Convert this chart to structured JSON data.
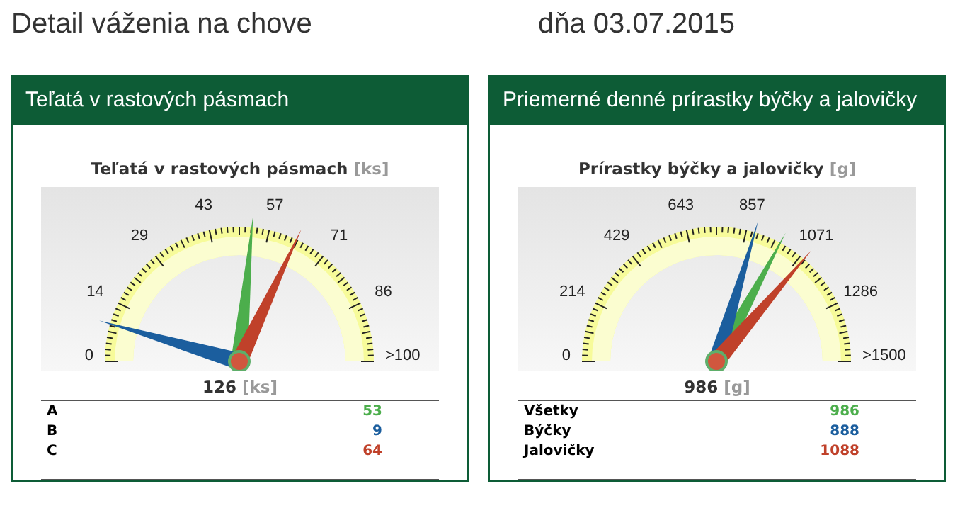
{
  "chart_data": [
    {
      "type": "other",
      "annotations": [
        "Detail váženia na chove",
        "dňa 03.07.2015"
      ]
    },
    {
      "type": "other",
      "title": "Teľatá v rastových pásmach",
      "subtitle": "Teľatá v rastových pásmach [ks]",
      "annotations": [
        "0",
        "14",
        "29",
        "43",
        "57",
        "71",
        "86",
        ">100",
        "126 [ks]"
      ],
      "categories": [
        "A",
        "B",
        "C"
      ],
      "values": [
        53,
        9,
        64
      ],
      "colors": [
        "#4cae4c",
        "#1b5e9e",
        "#c0412a"
      ],
      "value_labels": [
        "53",
        "9",
        "64"
      ]
    },
    {
      "type": "other",
      "title": "Priemerné denné prírastky býčky a jalovičky",
      "subtitle": "Prírastky býčky a jalovičky [g]",
      "annotations": [
        "0",
        "214",
        "429",
        "643",
        "857",
        "1071",
        "1286",
        ">1500",
        "986 [g]"
      ],
      "categories": [
        "Všetky",
        "Býčky",
        "Jalovičky"
      ],
      "values": [
        986,
        888,
        1088
      ],
      "colors": [
        "#4cae4c",
        "#1b5e9e",
        "#c0412a"
      ],
      "value_labels": [
        "986",
        "888",
        "1088"
      ]
    }
  ]
}
